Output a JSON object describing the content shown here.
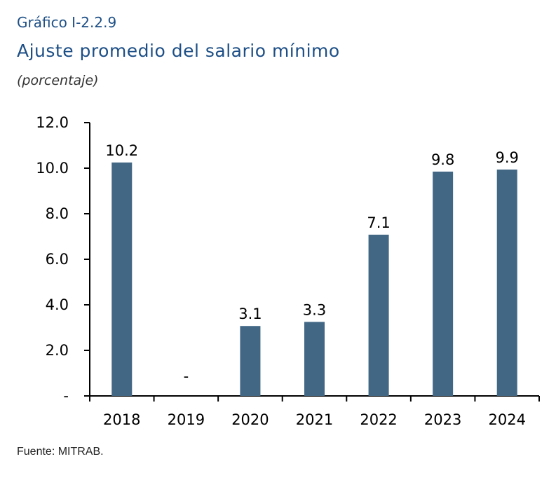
{
  "header": {
    "kicker": "Gráfico I-2.2.9",
    "title": "Ajuste promedio del salario mínimo",
    "unit": "(porcentaje)"
  },
  "source": "Fuente: MITRAB.",
  "colors": {
    "bar": "#426785",
    "title": "#1d4f86"
  },
  "chart_data": {
    "type": "bar",
    "categories": [
      "2018",
      "2019",
      "2020",
      "2021",
      "2022",
      "2023",
      "2024"
    ],
    "values": [
      10.25,
      0,
      3.07,
      3.25,
      7.08,
      9.85,
      9.94
    ],
    "data_labels": [
      "10.2",
      "-",
      "3.1",
      "3.3",
      "7.1",
      "9.8",
      "9.9"
    ],
    "yticks": [
      0,
      2,
      4,
      6,
      8,
      10,
      12
    ],
    "ytick_labels": [
      "-",
      "2.0",
      "4.0",
      "6.0",
      "8.0",
      "10.0",
      "12.0"
    ],
    "ylim": [
      0,
      12
    ],
    "grid": false,
    "legend": "none",
    "title": "Ajuste promedio del salario mínimo",
    "ylabel": "(porcentaje)",
    "xlabel": ""
  }
}
